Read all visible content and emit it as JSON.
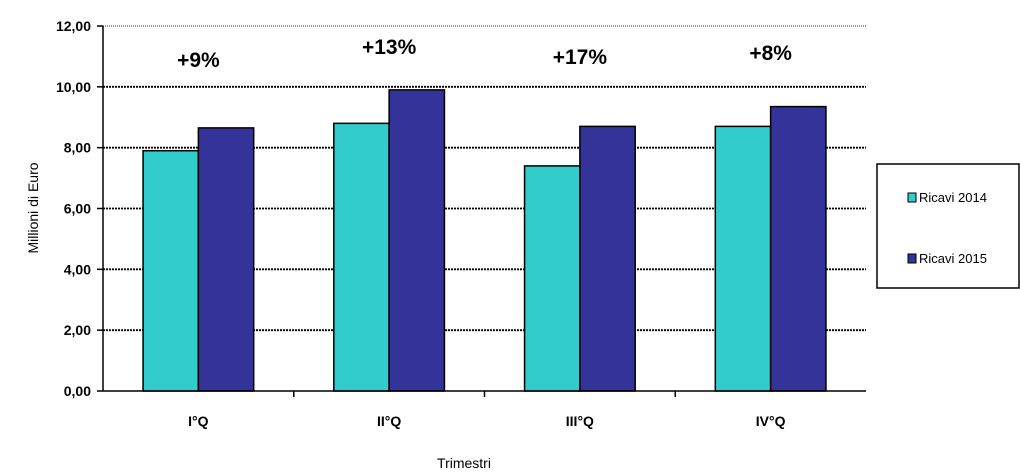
{
  "chart_data": {
    "type": "bar",
    "categories": [
      "I°Q",
      "II°Q",
      "III°Q",
      "IV°Q"
    ],
    "series": [
      {
        "name": "Ricavi 2014",
        "values": [
          7.9,
          8.8,
          7.4,
          8.7
        ],
        "color": "#33CCCC"
      },
      {
        "name": "Ricavi 2015",
        "values": [
          8.65,
          9.9,
          8.7,
          9.35
        ],
        "color": "#333399"
      }
    ],
    "annotations": [
      "+9%",
      "+13%",
      "+17%",
      "+8%"
    ],
    "xlabel": "Trimestri",
    "ylabel": "Millioni di Euro",
    "ylim": [
      0,
      12
    ],
    "yticks": [
      "0,00",
      "2,00",
      "4,00",
      "6,00",
      "8,00",
      "10,00",
      "12,00"
    ],
    "grid": true,
    "legend_position": "right"
  }
}
